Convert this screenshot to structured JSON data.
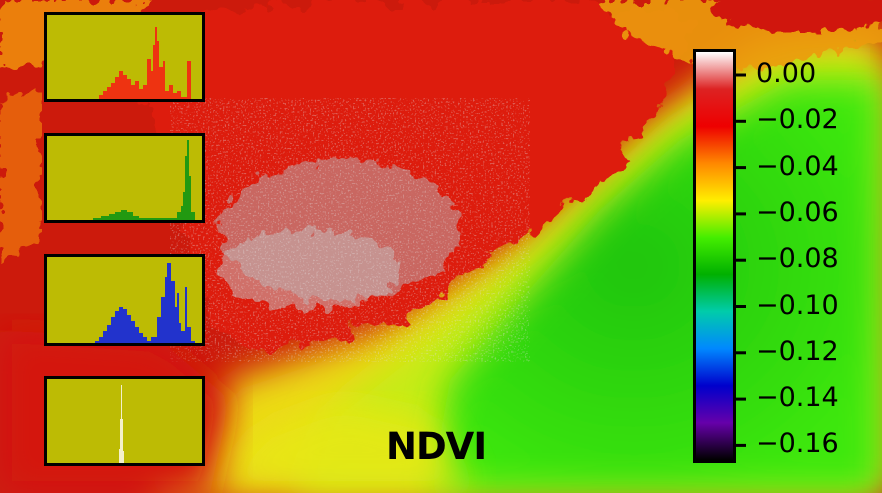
{
  "title": "NDVI",
  "colorbar": {
    "tick_labels": [
      "0.00",
      "−0.02",
      "−0.04",
      "−0.06",
      "−0.08",
      "−0.10",
      "−0.12",
      "−0.14",
      "−0.16"
    ],
    "range": [
      -0.17,
      0.01
    ],
    "colors": [
      "#ffffff",
      "#dd2222",
      "#ee0000",
      "#ff8800",
      "#ffee00",
      "#44ee00",
      "#00b000",
      "#00ccaa",
      "#0088ff",
      "#0000cc",
      "#6600aa",
      "#000000"
    ]
  },
  "histograms": [
    {
      "name": "red",
      "color": "#ee3311"
    },
    {
      "name": "green",
      "color": "#229911"
    },
    {
      "name": "blue",
      "color": "#2233cc"
    },
    {
      "name": "ndvi",
      "color": "#f4f0cc"
    }
  ],
  "scene_colors": {
    "red": "#cc1a0c",
    "orange": "#ee7a14",
    "yellow": "#f0e020",
    "yellow_green": "#c8ee10",
    "green": "#3ee808",
    "dark_green": "#26cc0a",
    "grey": "#b8a8a8"
  }
}
